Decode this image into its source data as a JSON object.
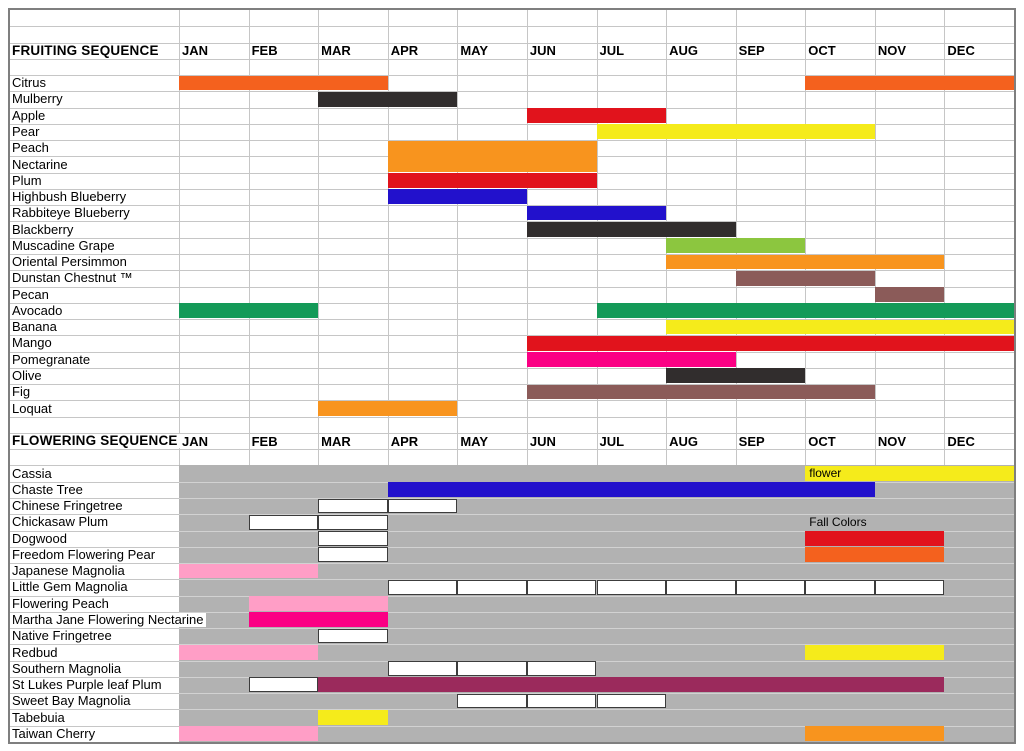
{
  "chart_data": {
    "type": "bar",
    "variant": "gantt-calendar",
    "grid": true,
    "months": [
      "JAN",
      "FEB",
      "MAR",
      "APR",
      "MAY",
      "JUN",
      "JUL",
      "AUG",
      "SEP",
      "OCT",
      "NOV",
      "DEC"
    ],
    "palette": {
      "orange_red": "#F4611E",
      "orange": "#F8941E",
      "red": "#E1131C",
      "yellow": "#F5EB1B",
      "blue": "#2211CC",
      "dark": "#312D2D",
      "yellow_green": "#8CC63F",
      "brown": "#8B5B59",
      "green": "#149A58",
      "hot_pink": "#FB0084",
      "pink": "#FF9EC6",
      "maroon": "#9B2A5C",
      "white": "#FFFFFF"
    },
    "flowering_background": "#B2B2B2",
    "sections": [
      {
        "title": "FRUITING SEQUENCE",
        "background": "white",
        "rows": [
          {
            "label": "Citrus",
            "bars": [
              {
                "from": "JAN",
                "to": "MAR",
                "color": "orange_red"
              },
              {
                "from": "OCT",
                "to": "DEC",
                "color": "orange_red"
              }
            ]
          },
          {
            "label": "Mulberry",
            "bars": [
              {
                "from": "MAR",
                "to": "APR",
                "color": "dark"
              }
            ]
          },
          {
            "label": "Apple",
            "bars": [
              {
                "from": "JUN",
                "to": "JUL",
                "color": "red"
              }
            ]
          },
          {
            "label": "Pear",
            "bars": [
              {
                "from": "JUL",
                "to": "OCT",
                "color": "yellow"
              }
            ]
          },
          {
            "label": "Peach",
            "bars": [
              {
                "from": "APR",
                "to": "JUN",
                "color": "orange",
                "row_span": 2
              }
            ]
          },
          {
            "label": "Nectarine",
            "bars": []
          },
          {
            "label": "Plum",
            "bars": [
              {
                "from": "APR",
                "to": "JUN",
                "color": "red"
              }
            ]
          },
          {
            "label": "Highbush Blueberry",
            "bars": [
              {
                "from": "APR",
                "to": "MAY",
                "color": "blue"
              }
            ]
          },
          {
            "label": "Rabbiteye Blueberry",
            "bars": [
              {
                "from": "JUN",
                "to": "JUL",
                "color": "blue"
              }
            ]
          },
          {
            "label": "Blackberry",
            "bars": [
              {
                "from": "JUN",
                "to": "AUG",
                "color": "dark"
              }
            ]
          },
          {
            "label": "Muscadine Grape",
            "bars": [
              {
                "from": "AUG",
                "to": "SEP",
                "color": "yellow_green"
              }
            ]
          },
          {
            "label": "Oriental Persimmon",
            "bars": [
              {
                "from": "AUG",
                "to": "NOV",
                "color": "orange"
              }
            ]
          },
          {
            "label": "Dunstan Chestnut ™",
            "bars": [
              {
                "from": "SEP",
                "to": "OCT",
                "color": "brown"
              }
            ]
          },
          {
            "label": "Pecan",
            "bars": [
              {
                "from": "NOV",
                "to": "NOV",
                "color": "brown"
              }
            ]
          },
          {
            "label": "Avocado",
            "bars": [
              {
                "from": "JAN",
                "to": "FEB",
                "color": "green"
              },
              {
                "from": "JUL",
                "to": "DEC",
                "color": "green"
              }
            ]
          },
          {
            "label": "Banana",
            "bars": [
              {
                "from": "AUG",
                "to": "DEC",
                "color": "yellow"
              }
            ]
          },
          {
            "label": "Mango",
            "bars": [
              {
                "from": "JUN",
                "to": "DEC",
                "color": "red"
              }
            ]
          },
          {
            "label": "Pomegranate",
            "bars": [
              {
                "from": "JUN",
                "to": "AUG",
                "color": "hot_pink"
              }
            ]
          },
          {
            "label": "Olive",
            "bars": [
              {
                "from": "AUG",
                "to": "SEP",
                "color": "dark"
              }
            ]
          },
          {
            "label": "Fig",
            "bars": [
              {
                "from": "JUN",
                "to": "OCT",
                "color": "brown"
              }
            ]
          },
          {
            "label": "Loquat",
            "bars": [
              {
                "from": "MAR",
                "to": "APR",
                "color": "orange"
              }
            ]
          }
        ]
      },
      {
        "title": "FLOWERING SEQUENCE",
        "background": "gray",
        "rows": [
          {
            "label": "Cassia",
            "bars": [
              {
                "from": "OCT",
                "to": "DEC",
                "color": "yellow",
                "text": "flower"
              }
            ]
          },
          {
            "label": "Chaste Tree",
            "bars": [
              {
                "from": "APR",
                "to": "OCT",
                "color": "blue"
              }
            ]
          },
          {
            "label": "Chinese Fringetree",
            "bars": [
              {
                "from": "MAR",
                "to": "MAR",
                "color": "white"
              },
              {
                "from": "APR",
                "to": "APR",
                "color": "white"
              }
            ]
          },
          {
            "label": "Chickasaw Plum",
            "bars": [
              {
                "from": "FEB",
                "to": "FEB",
                "color": "white"
              },
              {
                "from": "MAR",
                "to": "MAR",
                "color": "white"
              }
            ],
            "note": {
              "text": "Fall Colors",
              "at": "OCT"
            }
          },
          {
            "label": "Dogwood",
            "bars": [
              {
                "from": "MAR",
                "to": "MAR",
                "color": "white"
              },
              {
                "from": "OCT",
                "to": "NOV",
                "color": "red"
              }
            ]
          },
          {
            "label": "Freedom Flowering Pear",
            "bars": [
              {
                "from": "MAR",
                "to": "MAR",
                "color": "white"
              },
              {
                "from": "OCT",
                "to": "NOV",
                "color": "orange_red"
              }
            ]
          },
          {
            "label": "Japanese Magnolia",
            "bars": [
              {
                "from": "JAN",
                "to": "FEB",
                "color": "pink"
              }
            ]
          },
          {
            "label": "Little Gem Magnolia",
            "bars": [
              {
                "from": "APR",
                "to": "APR",
                "color": "white"
              },
              {
                "from": "MAY",
                "to": "MAY",
                "color": "white"
              },
              {
                "from": "JUN",
                "to": "JUN",
                "color": "white"
              },
              {
                "from": "JUL",
                "to": "JUL",
                "color": "white"
              },
              {
                "from": "AUG",
                "to": "AUG",
                "color": "white"
              },
              {
                "from": "SEP",
                "to": "SEP",
                "color": "white"
              },
              {
                "from": "OCT",
                "to": "OCT",
                "color": "white"
              },
              {
                "from": "NOV",
                "to": "NOV",
                "color": "white"
              }
            ]
          },
          {
            "label": "Flowering Peach",
            "bars": [
              {
                "from": "FEB",
                "to": "MAR",
                "color": "pink"
              }
            ]
          },
          {
            "label": "Martha Jane Flowering Nectarine",
            "bars": [
              {
                "from": "FEB",
                "to": "MAR",
                "color": "hot_pink"
              }
            ]
          },
          {
            "label": "Native Fringetree",
            "bars": [
              {
                "from": "MAR",
                "to": "MAR",
                "color": "white"
              }
            ]
          },
          {
            "label": "Redbud",
            "bars": [
              {
                "from": "JAN",
                "to": "FEB",
                "color": "pink"
              },
              {
                "from": "OCT",
                "to": "NOV",
                "color": "yellow"
              }
            ]
          },
          {
            "label": "Southern Magnolia",
            "bars": [
              {
                "from": "APR",
                "to": "APR",
                "color": "white"
              },
              {
                "from": "MAY",
                "to": "MAY",
                "color": "white"
              },
              {
                "from": "JUN",
                "to": "JUN",
                "color": "white"
              }
            ]
          },
          {
            "label": "St Lukes Purple leaf Plum",
            "bars": [
              {
                "from": "FEB",
                "to": "FEB",
                "color": "white"
              },
              {
                "from": "MAR",
                "to": "NOV",
                "color": "maroon"
              }
            ]
          },
          {
            "label": "Sweet Bay Magnolia",
            "bars": [
              {
                "from": "MAY",
                "to": "MAY",
                "color": "white"
              },
              {
                "from": "JUN",
                "to": "JUN",
                "color": "white"
              },
              {
                "from": "JUL",
                "to": "JUL",
                "color": "white"
              }
            ]
          },
          {
            "label": "Tabebuia",
            "bars": [
              {
                "from": "MAR",
                "to": "MAR",
                "color": "yellow"
              }
            ]
          },
          {
            "label": "Taiwan Cherry",
            "bars": [
              {
                "from": "JAN",
                "to": "FEB",
                "color": "pink"
              },
              {
                "from": "OCT",
                "to": "NOV",
                "color": "orange"
              }
            ]
          }
        ]
      }
    ]
  }
}
